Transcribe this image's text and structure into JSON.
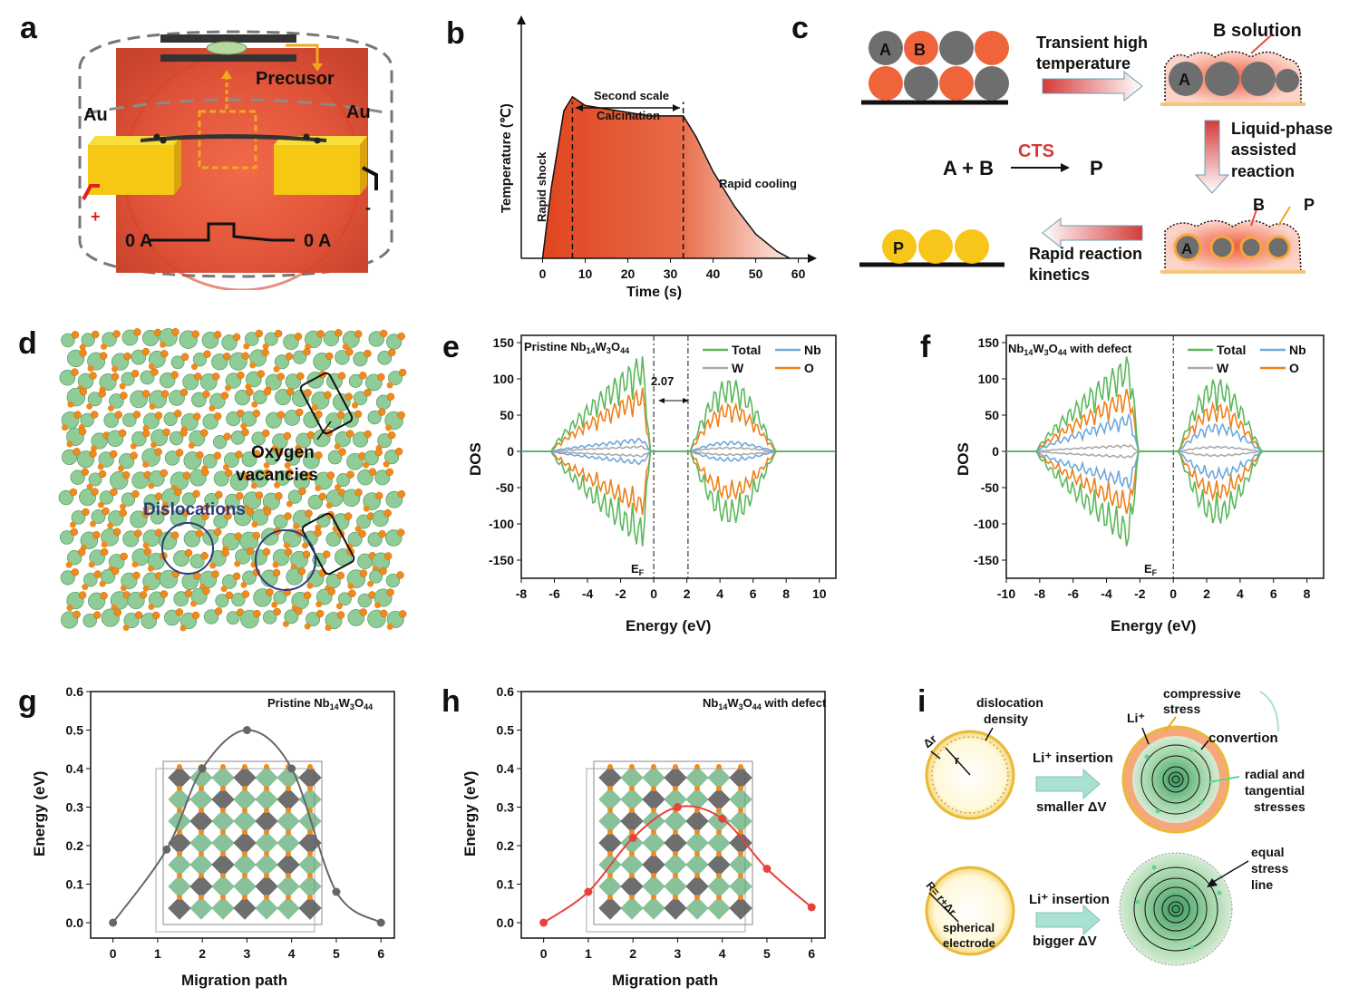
{
  "panel_labels": [
    "a",
    "b",
    "c",
    "d",
    "e",
    "f",
    "g",
    "h",
    "i"
  ],
  "panel_a": {
    "precursor": "Precusor",
    "au_left": "Au",
    "au_right": "Au",
    "plus": "+",
    "minus": "-",
    "current_left": "0 A",
    "current_right": "0 A"
  },
  "panel_b": {
    "ylabel": "Temperature (℃)",
    "xlabel": "Time (s)",
    "xticks": [
      "0",
      "10",
      "20",
      "30",
      "40",
      "50",
      "60"
    ],
    "second_scale": "Second scale",
    "calcination": "Calcination",
    "rapid_shock": "Rapid shock",
    "rapid_cooling": "Rapid cooling"
  },
  "panel_c": {
    "sphere_a": "A",
    "sphere_b": "B",
    "transient": "Transient high",
    "temperature": "temperature",
    "b_solution": "B solution",
    "liquid1": "Liquid-phase",
    "liquid2": "assisted",
    "liquid3": "reaction",
    "reaction_lhs": "A + B",
    "cts": "CTS",
    "reaction_rhs": "P",
    "label_b": "B",
    "label_p": "P",
    "label_a": "A",
    "rapid1": "Rapid reaction",
    "rapid2": "kinetics"
  },
  "panel_d": {
    "oxygen1": "Oxygen",
    "oxygen2": "vacancies",
    "dislocations": "Dislocations"
  },
  "panel_e": {
    "title_main": "Pristine Nb",
    "title_sub1": "14",
    "title_mid1": "W",
    "title_sub2": "3",
    "title_mid2": "O",
    "title_sub3": "44",
    "gap": "2.07",
    "ef": "E",
    "ef_sub": "F",
    "xlabel": "Energy (eV)",
    "ylabel": "DOS",
    "xticks": [
      "-8",
      "-6",
      "-4",
      "-2",
      "0",
      "2",
      "4",
      "6",
      "8",
      "10"
    ],
    "yticks": [
      "150",
      "100",
      "50",
      "0",
      "-50",
      "-100",
      "-150"
    ],
    "legend": [
      "Total",
      "Nb",
      "W",
      "O"
    ]
  },
  "panel_f": {
    "title_main": "Nb",
    "title_sub1": "14",
    "title_mid1": "W",
    "title_sub2": "3",
    "title_mid2": "O",
    "title_sub3": "44",
    "title_tail": " with defect",
    "ef": "E",
    "ef_sub": "F",
    "xlabel": "Energy (eV)",
    "ylabel": "DOS",
    "xticks": [
      "-10",
      "-8",
      "-6",
      "-4",
      "-2",
      "0",
      "2",
      "4",
      "6",
      "8"
    ],
    "yticks": [
      "150",
      "100",
      "50",
      "0",
      "-50",
      "-100",
      "-150"
    ],
    "legend": [
      "Total",
      "Nb",
      "W",
      "O"
    ]
  },
  "panel_g": {
    "title_main": "Pristine Nb",
    "title_sub1": "14",
    "title_mid1": "W",
    "title_sub2": "3",
    "title_mid2": "O",
    "title_sub3": "44",
    "xlabel": "Migration path",
    "ylabel": "Energy (eV)",
    "xticks": [
      "0",
      "1",
      "2",
      "3",
      "4",
      "5",
      "6"
    ],
    "yticks": [
      "0.6",
      "0.5",
      "0.4",
      "0.3",
      "0.2",
      "0.1",
      "0.0"
    ]
  },
  "panel_h": {
    "title_main": "Nb",
    "title_sub1": "14",
    "title_mid1": "W",
    "title_sub2": "3",
    "title_mid2": "O",
    "title_sub3": "44",
    "title_tail": " with defect",
    "xlabel": "Migration path",
    "ylabel": "Energy (eV)",
    "xticks": [
      "0",
      "1",
      "2",
      "3",
      "4",
      "5",
      "6"
    ],
    "yticks": [
      "0.6",
      "0.5",
      "0.4",
      "0.3",
      "0.2",
      "0.1",
      "0.0"
    ]
  },
  "panel_i": {
    "dislocation1": "dislocation",
    "dislocation2": "density",
    "delta_r": "Δr",
    "r": "r",
    "li_insertion1": "Li⁺ insertion",
    "smaller": "smaller ΔV",
    "compressive1": "compressive",
    "compressive2": "stress",
    "li_plus": "Li⁺",
    "convertion": "convertion",
    "radial1": "radial and",
    "radial2": "tangential",
    "radial3": "stresses",
    "r_eq": "R= r+Δr",
    "spherical1": "spherical",
    "spherical2": "electrode",
    "li_insertion2": "Li⁺ insertion",
    "bigger": "bigger ΔV",
    "equal1": "equal",
    "equal2": "stress",
    "equal3": "line"
  },
  "chart_data": [
    {
      "type": "area",
      "panel": "b",
      "title": "",
      "xlabel": "Time (s)",
      "ylabel": "Temperature (℃)",
      "x": [
        0,
        2,
        5,
        7,
        10,
        15,
        20,
        25,
        30,
        33,
        36,
        40,
        45,
        50,
        55,
        58
      ],
      "y": [
        0,
        0.4,
        0.85,
        0.93,
        0.88,
        0.86,
        0.84,
        0.82,
        0.82,
        0.82,
        0.7,
        0.5,
        0.3,
        0.14,
        0.04,
        0
      ],
      "xlim": [
        -5,
        62
      ],
      "annotations": [
        "Rapid shock",
        "Second scale",
        "Calcination",
        "Rapid cooling"
      ]
    },
    {
      "type": "line",
      "panel": "e",
      "xlabel": "Energy (eV)",
      "ylabel": "DOS",
      "xlim": [
        -8,
        11
      ],
      "ylim": [
        -175,
        160
      ],
      "band_gap": 2.07,
      "series": [
        {
          "name": "Total",
          "color": "#5cb85c",
          "envelope_peak": 145
        },
        {
          "name": "Nb",
          "color": "#6fa8dc",
          "envelope_peak": 20
        },
        {
          "name": "W",
          "color": "#aaaaaa",
          "envelope_peak": 8
        },
        {
          "name": "O",
          "color": "#f07f19",
          "envelope_peak": 95
        }
      ]
    },
    {
      "type": "line",
      "panel": "f",
      "xlabel": "Energy (eV)",
      "ylabel": "DOS",
      "xlim": [
        -10,
        9
      ],
      "ylim": [
        -175,
        160
      ],
      "series": [
        {
          "name": "Total",
          "color": "#5cb85c",
          "envelope_peak": 145
        },
        {
          "name": "Nb",
          "color": "#6fa8dc",
          "envelope_peak": 55
        },
        {
          "name": "W",
          "color": "#aaaaaa",
          "envelope_peak": 10
        },
        {
          "name": "O",
          "color": "#f07f19",
          "envelope_peak": 95
        }
      ]
    },
    {
      "type": "line",
      "panel": "g",
      "xlabel": "Migration path",
      "ylabel": "Energy (eV)",
      "xlim": [
        -0.5,
        6.3
      ],
      "ylim": [
        -0.04,
        0.6
      ],
      "series": [
        {
          "x": [
            0,
            1.2,
            2,
            3,
            4,
            5,
            6
          ],
          "values": [
            0.0,
            0.19,
            0.4,
            0.5,
            0.4,
            0.08,
            0.0
          ],
          "color": "#666666"
        }
      ]
    },
    {
      "type": "line",
      "panel": "h",
      "xlabel": "Migration path",
      "ylabel": "Energy (eV)",
      "xlim": [
        -0.5,
        6.3
      ],
      "ylim": [
        -0.04,
        0.6
      ],
      "series": [
        {
          "x": [
            0,
            1,
            2,
            3,
            4,
            5,
            6
          ],
          "values": [
            0.0,
            0.08,
            0.22,
            0.3,
            0.27,
            0.14,
            0.04
          ],
          "color": "#e8433a"
        }
      ]
    }
  ]
}
